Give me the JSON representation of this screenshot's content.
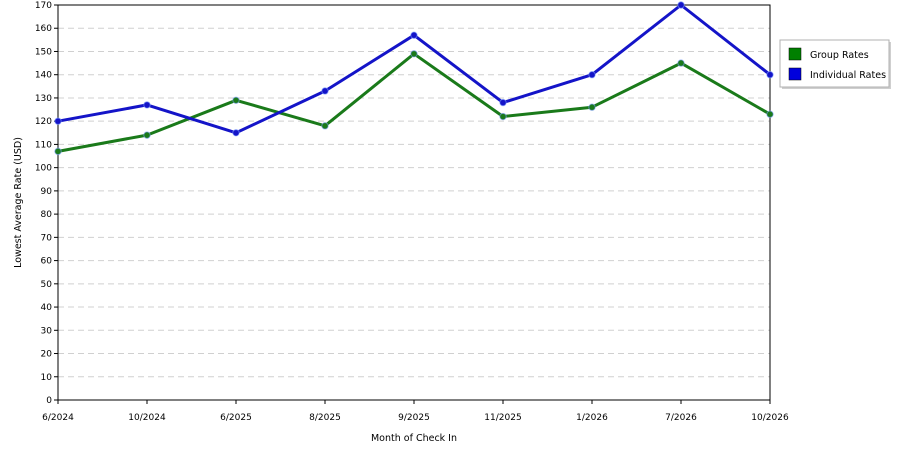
{
  "chart_data": {
    "type": "line",
    "title": "",
    "xlabel": "Month of Check In",
    "ylabel": "Lowest Average Rate (USD)",
    "categories": [
      "6/2024",
      "10/2024",
      "6/2025",
      "8/2025",
      "9/2025",
      "11/2025",
      "1/2026",
      "7/2026",
      "10/2026"
    ],
    "ylim": [
      0,
      170
    ],
    "ytick_step": 10,
    "grid": true,
    "legend_position": "right",
    "series": [
      {
        "name": "Group Rates",
        "color": "#1a7a1a",
        "legend_color": "#008000",
        "values": [
          107,
          114,
          129,
          118,
          149,
          122,
          126,
          145,
          123
        ]
      },
      {
        "name": "Individual Rates",
        "color": "#1414c8",
        "legend_color": "#0000dd",
        "values": [
          120,
          127,
          115,
          133,
          157,
          128,
          140,
          170,
          140
        ]
      }
    ]
  }
}
